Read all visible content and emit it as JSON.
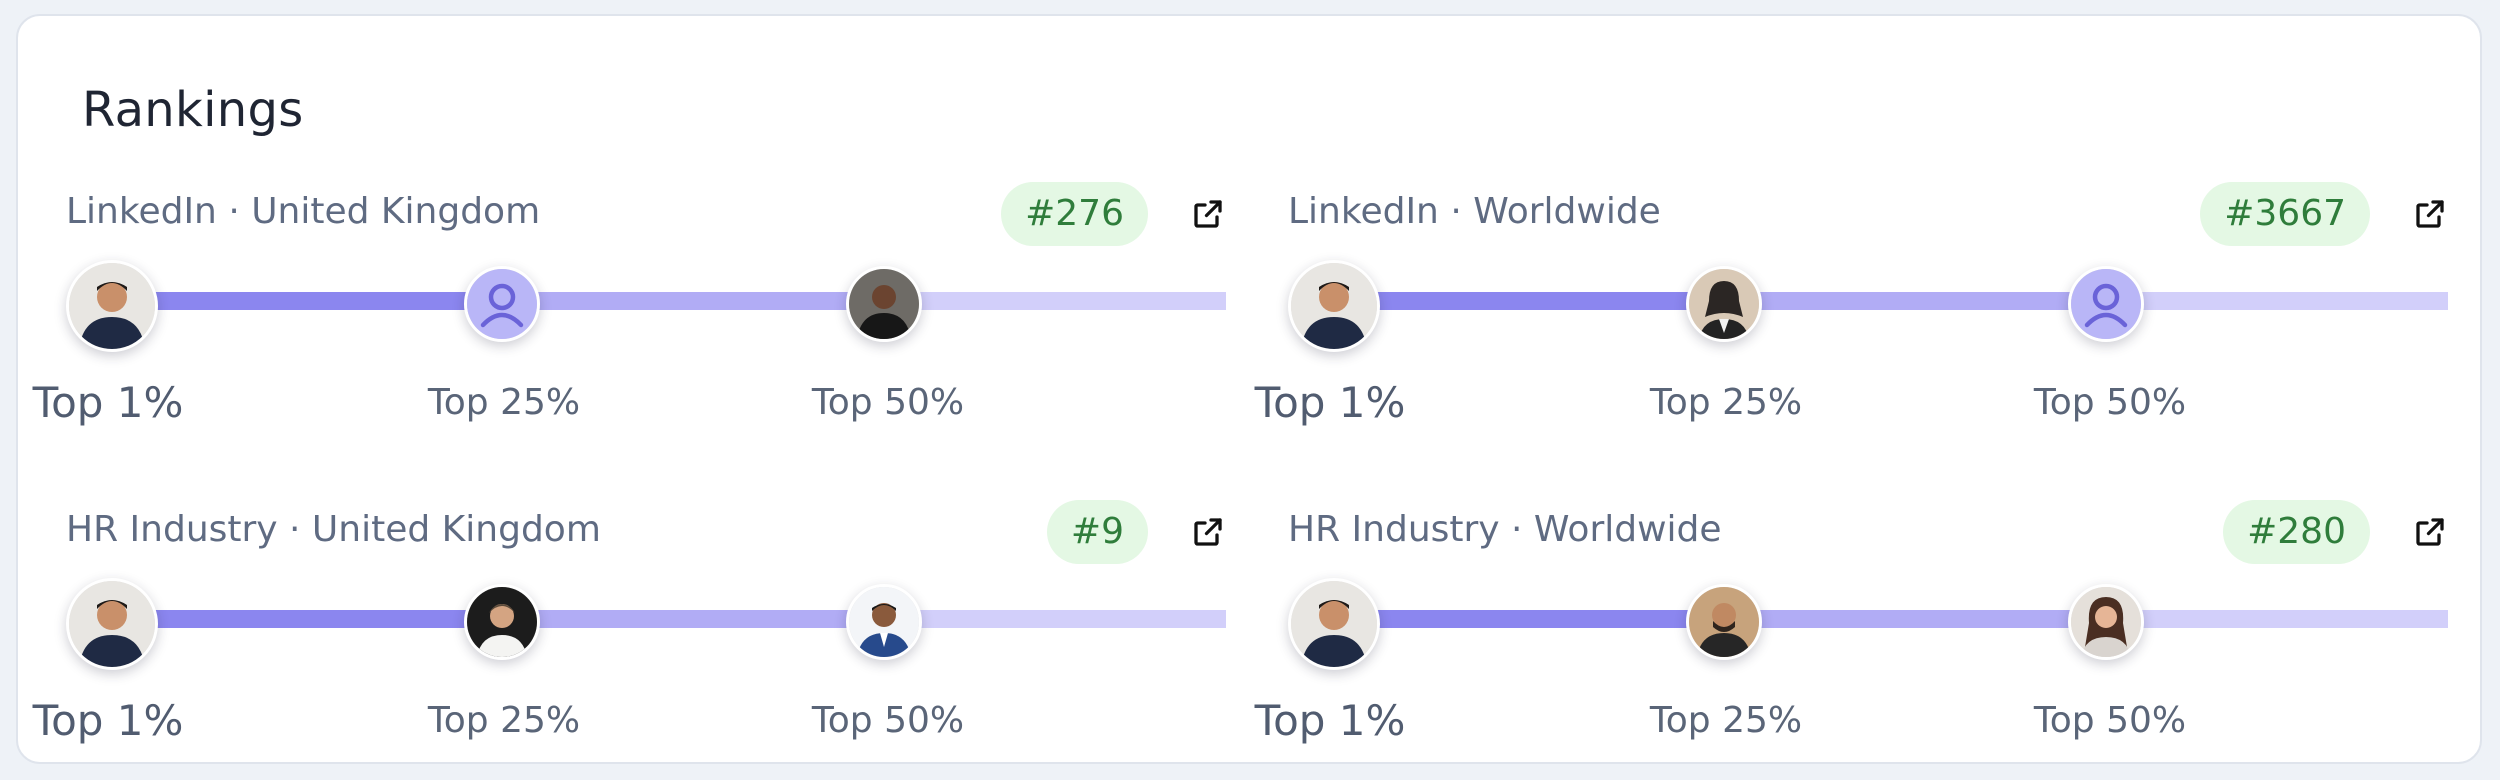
{
  "card": {
    "title": "Rankings"
  },
  "rankings": [
    {
      "title": "LinkedIn · United Kingdom",
      "rank": "#276",
      "avatars": [
        "person-user-photo",
        "current-user-placeholder",
        "person-photo"
      ],
      "tiers": [
        "Top 1%",
        "Top 25%",
        "Top 50%"
      ]
    },
    {
      "title": "LinkedIn · Worldwide",
      "rank": "#3667",
      "avatars": [
        "person-user-photo",
        "person-photo",
        "current-user-placeholder"
      ],
      "tiers": [
        "Top 1%",
        "Top 25%",
        "Top 50%"
      ]
    },
    {
      "title": "HR Industry · United Kingdom",
      "rank": "#9",
      "avatars": [
        "person-user-photo",
        "person-photo",
        "person-photo"
      ],
      "tiers": [
        "Top 1%",
        "Top 25%",
        "Top 50%"
      ]
    },
    {
      "title": "HR Industry · Worldwide",
      "rank": "#280",
      "avatars": [
        "person-user-photo",
        "person-photo",
        "person-photo"
      ],
      "tiers": [
        "Top 1%",
        "Top 25%",
        "Top 50%"
      ]
    }
  ],
  "colors": {
    "badge_bg": "#e4f8e4",
    "badge_text": "#2f7d3b",
    "bar_top": "#8b86ef",
    "bar_mid": "#b1acf5",
    "bar_low": "#d2cffa",
    "placeholder_avatar": "#b9b6f7"
  },
  "icons": {
    "open": "external-link-icon"
  }
}
